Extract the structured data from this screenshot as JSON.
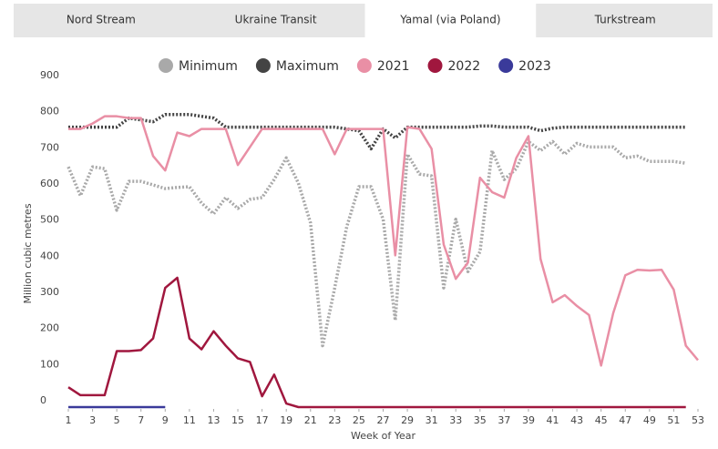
{
  "tabs": [
    "Nord Stream",
    "Ukraine Transit",
    "Yamal (via Poland)",
    "Turkstream"
  ],
  "active_tab": 2,
  "chart_data": {
    "type": "line",
    "xlabel": "Week of Year",
    "ylabel": "Million cubic metres",
    "x": [
      1,
      2,
      3,
      4,
      5,
      6,
      7,
      8,
      9,
      10,
      11,
      12,
      13,
      14,
      15,
      16,
      17,
      18,
      19,
      20,
      21,
      22,
      23,
      24,
      25,
      26,
      27,
      28,
      29,
      30,
      31,
      32,
      33,
      34,
      35,
      36,
      37,
      38,
      39,
      40,
      41,
      42,
      43,
      44,
      45,
      46,
      47,
      48,
      49,
      50,
      51,
      52,
      53
    ],
    "xlim": [
      1,
      53
    ],
    "xticks": [
      1,
      3,
      5,
      7,
      9,
      11,
      13,
      15,
      17,
      19,
      21,
      23,
      25,
      27,
      29,
      31,
      33,
      35,
      37,
      39,
      41,
      43,
      45,
      47,
      49,
      51,
      53
    ],
    "ylim": [
      0,
      900
    ],
    "yticks": [
      0,
      100,
      200,
      300,
      400,
      500,
      600,
      700,
      800,
      900
    ],
    "series": [
      {
        "name": "Minimum",
        "color": "#a9a9a9",
        "line_style": "dotted",
        "values": [
          665,
          585,
          665,
          660,
          545,
          625,
          625,
          615,
          605,
          608,
          610,
          565,
          535,
          580,
          550,
          575,
          580,
          630,
          690,
          620,
          510,
          170,
          330,
          500,
          610,
          610,
          520,
          240,
          700,
          645,
          640,
          330,
          520,
          375,
          430,
          710,
          630,
          660,
          735,
          710,
          735,
          700,
          730,
          720,
          720,
          720,
          690,
          695,
          680,
          680,
          680,
          675,
          null
        ]
      },
      {
        "name": "Maximum",
        "color": "#444444",
        "line_style": "dotted",
        "values": [
          775,
          775,
          775,
          775,
          775,
          800,
          795,
          790,
          810,
          810,
          810,
          805,
          800,
          775,
          775,
          775,
          775,
          775,
          775,
          775,
          775,
          775,
          775,
          770,
          765,
          715,
          770,
          745,
          775,
          775,
          775,
          775,
          775,
          775,
          778,
          778,
          775,
          775,
          775,
          765,
          772,
          775,
          775,
          775,
          775,
          775,
          775,
          775,
          775,
          775,
          775,
          775,
          null
        ]
      },
      {
        "name": "2021",
        "color": "#e98fa5",
        "line_style": "solid",
        "values": [
          770,
          770,
          785,
          805,
          805,
          800,
          800,
          695,
          655,
          760,
          750,
          770,
          770,
          770,
          670,
          720,
          770,
          770,
          770,
          770,
          770,
          770,
          700,
          770,
          770,
          770,
          770,
          420,
          775,
          770,
          715,
          450,
          355,
          400,
          635,
          595,
          580,
          690,
          750,
          410,
          290,
          310,
          280,
          255,
          115,
          260,
          365,
          380,
          378,
          380,
          325,
          170,
          130
        ]
      },
      {
        "name": "2022",
        "color": "#a0173e",
        "line_style": "solid",
        "values": [
          55,
          33,
          33,
          33,
          155,
          155,
          158,
          190,
          330,
          358,
          190,
          160,
          210,
          170,
          135,
          125,
          30,
          90,
          10,
          0,
          0,
          0,
          0,
          0,
          0,
          0,
          0,
          0,
          0,
          0,
          0,
          0,
          0,
          0,
          0,
          0,
          0,
          0,
          0,
          0,
          0,
          0,
          0,
          0,
          0,
          0,
          0,
          0,
          0,
          0,
          0,
          0,
          null
        ]
      },
      {
        "name": "2023",
        "color": "#3a3a9a",
        "line_style": "solid",
        "values": [
          0,
          0,
          0,
          0,
          0,
          0,
          0,
          0,
          0,
          null,
          null,
          null,
          null,
          null,
          null,
          null,
          null,
          null,
          null,
          null,
          null,
          null,
          null,
          null,
          null,
          null,
          null,
          null,
          null,
          null,
          null,
          null,
          null,
          null,
          null,
          null,
          null,
          null,
          null,
          null,
          null,
          null,
          null,
          null,
          null,
          null,
          null,
          null,
          null,
          null,
          null,
          null,
          null
        ]
      }
    ]
  }
}
